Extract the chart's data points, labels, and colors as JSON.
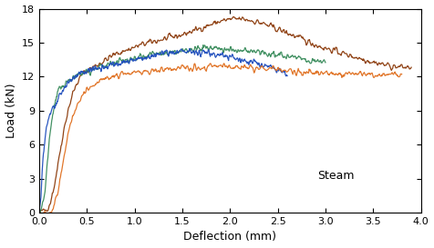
{
  "xlabel": "Deflection (mm)",
  "ylabel": "Load (kN)",
  "annotation": "Steam",
  "xlim": [
    0.0,
    4.0
  ],
  "ylim": [
    0,
    18
  ],
  "xticks": [
    0.0,
    0.5,
    1.0,
    1.5,
    2.0,
    2.5,
    3.0,
    3.5,
    4.0
  ],
  "yticks": [
    0,
    3,
    6,
    9,
    12,
    15,
    18
  ],
  "colors": {
    "blue": "#1f4ebd",
    "green": "#3a8c5c",
    "orange": "#e07020",
    "brown": "#8B3A0A"
  },
  "curves": {
    "blue": {
      "x": [
        0.0,
        0.01,
        0.02,
        0.03,
        0.04,
        0.06,
        0.08,
        0.1,
        0.12,
        0.14,
        0.16,
        0.18,
        0.2,
        0.22,
        0.24,
        0.26,
        0.28,
        0.3,
        0.35,
        0.4,
        0.45,
        0.5,
        0.55,
        0.6,
        0.7,
        0.8,
        0.9,
        1.0,
        1.1,
        1.2,
        1.3,
        1.4,
        1.5,
        1.6,
        1.7,
        1.8,
        1.9,
        2.0,
        2.1,
        2.2,
        2.3,
        2.4,
        2.5,
        2.6
      ],
      "y": [
        0.0,
        0.8,
        2.0,
        3.5,
        5.0,
        6.5,
        7.8,
        8.5,
        8.8,
        9.2,
        9.5,
        9.8,
        10.0,
        10.3,
        10.6,
        10.9,
        11.2,
        11.5,
        11.9,
        12.2,
        12.4,
        12.5,
        12.6,
        12.7,
        12.9,
        13.1,
        13.3,
        13.5,
        13.7,
        13.9,
        14.05,
        14.1,
        14.15,
        14.15,
        14.1,
        14.0,
        13.9,
        13.7,
        13.5,
        13.3,
        13.1,
        12.9,
        12.6,
        12.3
      ]
    },
    "green": {
      "x": [
        0.0,
        0.02,
        0.04,
        0.06,
        0.08,
        0.1,
        0.13,
        0.16,
        0.19,
        0.22,
        0.26,
        0.3,
        0.35,
        0.4,
        0.45,
        0.5,
        0.55,
        0.6,
        0.7,
        0.8,
        0.9,
        1.0,
        1.1,
        1.2,
        1.3,
        1.4,
        1.5,
        1.6,
        1.7,
        1.8,
        1.9,
        2.0,
        2.2,
        2.4,
        2.6,
        2.8,
        3.0
      ],
      "y": [
        0.0,
        0.3,
        0.8,
        2.0,
        4.0,
        6.0,
        8.0,
        9.5,
        10.5,
        11.0,
        11.3,
        11.6,
        11.9,
        12.1,
        12.3,
        12.5,
        12.6,
        12.8,
        13.0,
        13.2,
        13.4,
        13.6,
        13.8,
        14.0,
        14.1,
        14.2,
        14.3,
        14.4,
        14.5,
        14.55,
        14.5,
        14.4,
        14.2,
        14.0,
        13.8,
        13.5,
        13.2
      ]
    },
    "orange": {
      "x": [
        0.0,
        0.1,
        0.15,
        0.2,
        0.25,
        0.3,
        0.35,
        0.4,
        0.45,
        0.5,
        0.55,
        0.6,
        0.7,
        0.8,
        0.9,
        1.0,
        1.1,
        1.2,
        1.3,
        1.4,
        1.5,
        1.6,
        1.7,
        1.8,
        1.9,
        2.0,
        2.2,
        2.4,
        2.6,
        2.8,
        3.0,
        3.2,
        3.4,
        3.6,
        3.8
      ],
      "y": [
        0.0,
        0.0,
        0.5,
        2.0,
        4.5,
        7.0,
        8.5,
        9.5,
        10.2,
        10.8,
        11.2,
        11.5,
        11.9,
        12.1,
        12.2,
        12.3,
        12.4,
        12.5,
        12.6,
        12.65,
        12.7,
        12.75,
        12.8,
        12.85,
        12.9,
        12.9,
        12.85,
        12.8,
        12.5,
        12.4,
        12.3,
        12.25,
        12.2,
        12.2,
        12.2
      ]
    },
    "brown": {
      "x": [
        0.0,
        0.08,
        0.12,
        0.16,
        0.2,
        0.25,
        0.3,
        0.35,
        0.4,
        0.45,
        0.5,
        0.55,
        0.6,
        0.7,
        0.8,
        0.9,
        1.0,
        1.1,
        1.2,
        1.3,
        1.4,
        1.5,
        1.6,
        1.7,
        1.8,
        1.9,
        2.0,
        2.1,
        2.2,
        2.3,
        2.5,
        2.7,
        2.9,
        3.0,
        3.1,
        3.2,
        3.5,
        3.7,
        3.9
      ],
      "y": [
        0.0,
        0.3,
        1.0,
        2.5,
        4.5,
        7.0,
        9.0,
        10.5,
        11.5,
        12.2,
        12.5,
        12.8,
        13.0,
        13.5,
        14.0,
        14.3,
        14.6,
        14.9,
        15.1,
        15.3,
        15.5,
        15.7,
        16.0,
        16.3,
        16.6,
        16.9,
        17.05,
        17.1,
        17.0,
        16.8,
        16.2,
        15.5,
        14.8,
        14.5,
        14.3,
        14.0,
        13.3,
        12.9,
        12.8
      ]
    }
  }
}
